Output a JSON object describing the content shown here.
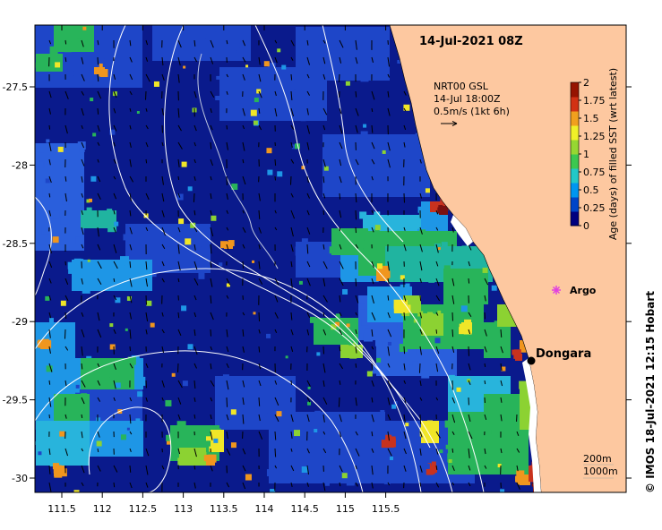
{
  "map": {
    "title": "14-Jul-2021 08Z",
    "current_label": {
      "line1": "NRT00 GSL",
      "line2": "14-Jul 18:00Z",
      "line3": "0.5m/s (1kt 6h)"
    },
    "colorbar": {
      "label": "Age (days) of filled SST (wrt latest)",
      "ticks": [
        "0",
        "0.25",
        "0.5",
        "0.75",
        "1",
        "1.25",
        "1.5",
        "1.75",
        "2"
      ],
      "colors": [
        "#00007f",
        "#0045c8",
        "#0096f0",
        "#22c8c8",
        "#3cc850",
        "#96d732",
        "#f0f028",
        "#f0a01e",
        "#d23214",
        "#961400"
      ]
    },
    "x_ticks": [
      "111.5",
      "112",
      "112.5",
      "113",
      "113.5",
      "114",
      "114.5",
      "115",
      "115.5"
    ],
    "y_ticks": [
      "-27.5",
      "-28",
      "-28.5",
      "-29",
      "-29.5",
      "-30"
    ],
    "places": [
      {
        "name": "Dongara",
        "marker": "dot"
      },
      {
        "name": "Argo",
        "marker": "star"
      }
    ],
    "depth_legend": {
      "line1": "200m",
      "line2": "1000m"
    },
    "credit": "© IMOS 18-Jul-2021 12:15 Hobart",
    "colors": {
      "land": "#fdc8a0",
      "ocean_deep": "#0a1a8c",
      "ocean_mid": "#1e46c8",
      "argo": "#e040e0",
      "contour": "#ffffff"
    }
  }
}
